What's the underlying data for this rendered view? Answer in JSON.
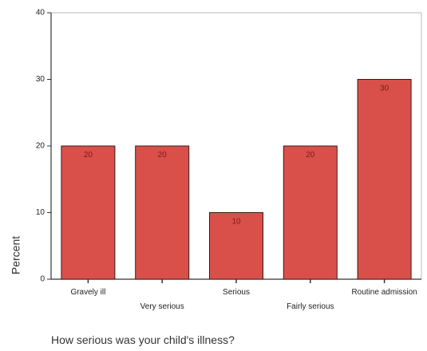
{
  "chart_data": {
    "type": "bar",
    "categories": [
      "Gravely ill",
      "Very serious",
      "Serious",
      "Fairly serious",
      "Routine admission"
    ],
    "values": [
      20,
      20,
      10,
      20,
      30
    ],
    "data_labels": [
      "20",
      "20",
      "10",
      "20",
      "30"
    ],
    "title": "",
    "xlabel": "How serious was your child's illness?",
    "ylabel": "Percent",
    "ylim": [
      0,
      40
    ],
    "yticks": [
      0,
      10,
      20,
      30,
      40
    ],
    "grid": false,
    "legend": "none",
    "colors": {
      "bar_fill": "#d9504a",
      "bar_stroke": "#3a1a18",
      "axis": "#333333"
    }
  }
}
